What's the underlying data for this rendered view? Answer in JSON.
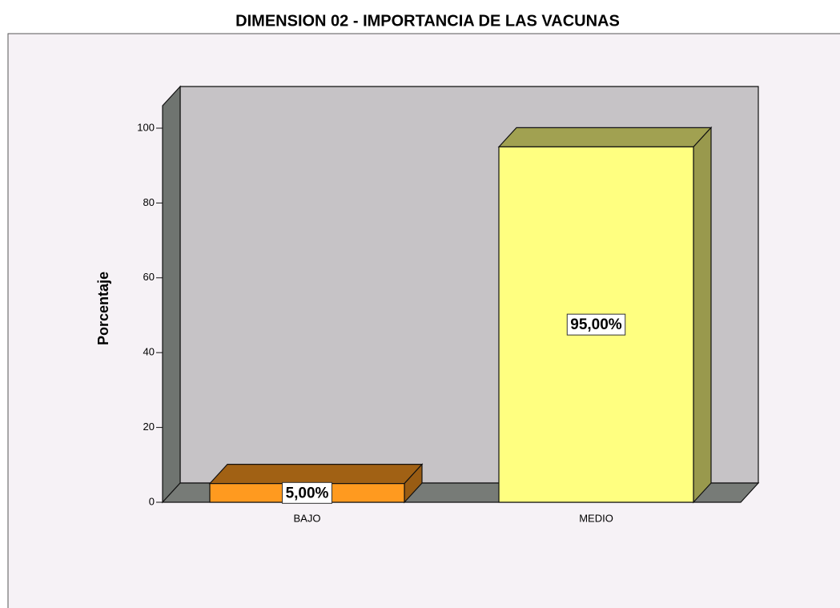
{
  "chart_data": {
    "type": "bar3d",
    "title": "DIMENSION 02 - IMPORTANCIA DE LAS VACUNAS",
    "ylabel": "Porcentaje",
    "categories": [
      "BAJO",
      "MEDIO"
    ],
    "values": [
      5,
      95
    ],
    "value_labels": [
      "5,00%",
      "95,00%"
    ],
    "colors": [
      "#ff9a1f",
      "#ffff80"
    ],
    "ylim": [
      0,
      106
    ],
    "yticks": [
      0,
      20,
      40,
      60,
      80,
      100
    ]
  }
}
